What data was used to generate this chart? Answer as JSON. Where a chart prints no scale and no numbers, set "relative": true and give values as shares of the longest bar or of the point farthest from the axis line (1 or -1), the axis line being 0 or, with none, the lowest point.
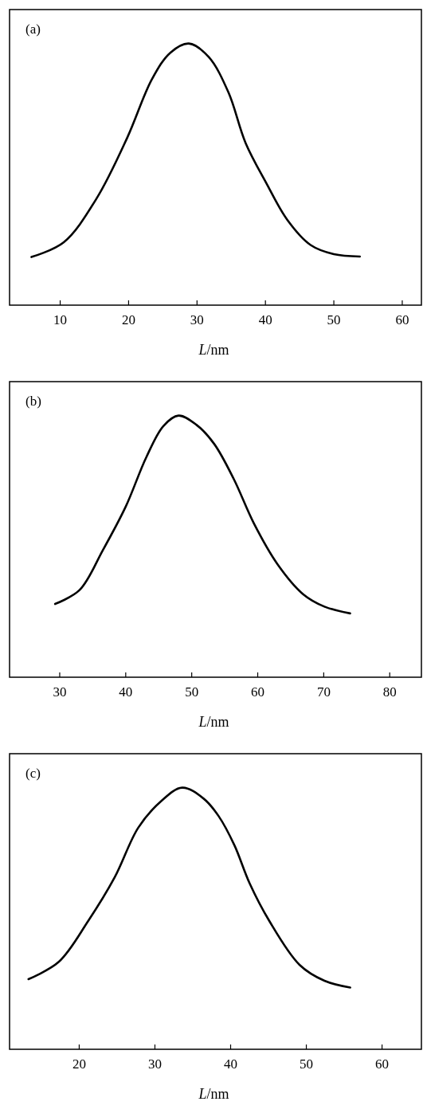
{
  "chart_data": [
    {
      "type": "line",
      "relative": true,
      "xlabel": "L/nm",
      "annotations": [
        "(a)"
      ],
      "xlim": [
        2.6,
        62.8
      ],
      "xticks": [
        10,
        20,
        30,
        40,
        50,
        60
      ],
      "tick_labels": "x",
      "series": [
        {
          "color": "#000000",
          "x": [
            5.8,
            10.5,
            15.3,
            19.8,
            23.4,
            26.1,
            28.8,
            31.7,
            34.6,
            37.1,
            40.1,
            43.2,
            46.6,
            50,
            53.8
          ],
          "values": [
            0.184,
            0.24,
            0.407,
            0.64,
            0.863,
            0.965,
            1,
            0.949,
            0.813,
            0.62,
            0.468,
            0.326,
            0.23,
            0.195,
            0.186
          ]
        }
      ]
    },
    {
      "type": "line",
      "relative": true,
      "xlabel": "L/nm",
      "annotations": [
        "(b)"
      ],
      "xlim": [
        22.4,
        84.8
      ],
      "xticks": [
        30,
        40,
        50,
        60,
        70,
        80
      ],
      "tick_labels": "x",
      "series": [
        {
          "color": "#000000",
          "x": [
            29.3,
            33.0,
            36.5,
            40,
            43.1,
            45.7,
            48.0,
            50.7,
            53.4,
            56.4,
            59.4,
            63.0,
            66.9,
            70.1,
            74.0
          ],
          "values": [
            0.28,
            0.333,
            0.484,
            0.652,
            0.84,
            0.96,
            1,
            0.965,
            0.892,
            0.756,
            0.589,
            0.432,
            0.317,
            0.27,
            0.244
          ]
        }
      ]
    },
    {
      "type": "line",
      "relative": true,
      "xlabel": "L/nm",
      "annotations": [
        "(c)"
      ],
      "xlim": [
        10.8,
        65.2
      ],
      "xticks": [
        20,
        30,
        40,
        50,
        60
      ],
      "tick_labels": "x",
      "series": [
        {
          "color": "#000000",
          "x": [
            13.3,
            17.3,
            21.2,
            24.7,
            27.8,
            30.8,
            33.6,
            36.4,
            38.4,
            40.5,
            42.5,
            45.1,
            49.1,
            52.4,
            55.8
          ],
          "values": [
            0.268,
            0.334,
            0.491,
            0.658,
            0.847,
            0.948,
            1,
            0.959,
            0.892,
            0.78,
            0.635,
            0.491,
            0.323,
            0.262,
            0.236
          ]
        }
      ]
    }
  ]
}
